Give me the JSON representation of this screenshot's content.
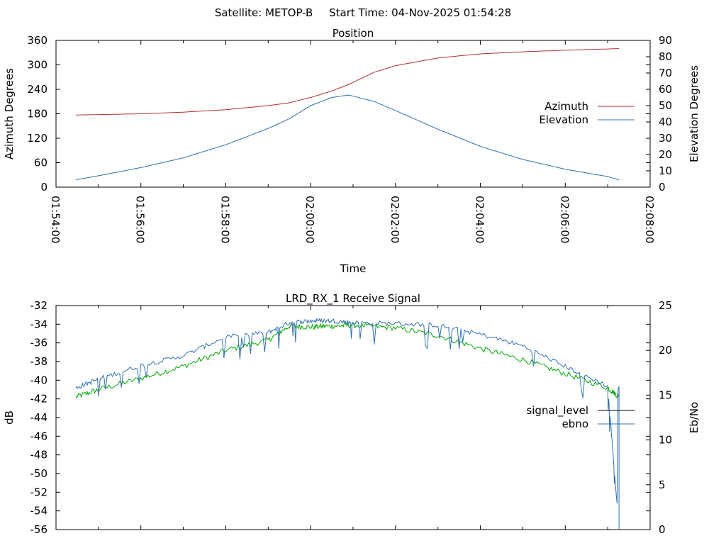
{
  "header": {
    "satellite_label": "Satellite: METOP-B",
    "start_time_label": "Start Time: 04-Nov-2025 01:54:28"
  },
  "colors": {
    "azimuth": "#b03030",
    "elevation": "#3070b0",
    "ebno_line": "#3070b0",
    "signal_line": "#00a800",
    "signal_legend_swatch": "#000000",
    "axis": "#000000"
  },
  "chart_data": [
    {
      "type": "line",
      "title": "Position",
      "xlabel": "Time",
      "ylabel": "Azimuth Degrees",
      "y2label": "Elevation Degrees",
      "xlim": [
        "01:54:00",
        "02:08:00"
      ],
      "ylim": [
        0,
        360
      ],
      "y2lim": [
        0,
        90
      ],
      "x_ticks": [
        "01:54:00",
        "01:56:00",
        "01:58:00",
        "02:00:00",
        "02:02:00",
        "02:04:00",
        "02:06:00",
        "02:08:00"
      ],
      "y_ticks": [
        "0",
        "60",
        "120",
        "180",
        "240",
        "300",
        "360"
      ],
      "y2_ticks": [
        "0",
        "10",
        "20",
        "30",
        "40",
        "50",
        "60",
        "70",
        "80",
        "90"
      ],
      "legend_position": "right-middle",
      "x": [
        "01:54:28",
        "01:55:00",
        "01:56:00",
        "01:57:00",
        "01:58:00",
        "01:59:00",
        "01:59:30",
        "02:00:00",
        "02:00:30",
        "02:00:54",
        "02:01:30",
        "02:02:00",
        "02:03:00",
        "02:04:00",
        "02:05:00",
        "02:06:00",
        "02:07:00",
        "02:07:16"
      ],
      "series": [
        {
          "name": "Azimuth",
          "axis": "left",
          "values": [
            177,
            178,
            180,
            184,
            190,
            200,
            207,
            220,
            236,
            252,
            282,
            298,
            317,
            327,
            332,
            336,
            339,
            340
          ]
        },
        {
          "name": "Elevation",
          "axis": "right",
          "values": [
            4.5,
            7,
            12,
            18,
            26,
            36,
            42,
            50,
            55,
            56.5,
            52.5,
            47,
            35.5,
            25,
            17,
            11,
            6.5,
            4.5
          ]
        }
      ]
    },
    {
      "type": "line",
      "title": "LRD_RX_1 Receive Signal",
      "ylabel": "dB",
      "y2label": "Eb/No",
      "xlim": [
        "01:54:00",
        "02:08:00"
      ],
      "ylim": [
        -56,
        -32
      ],
      "y2lim": [
        0,
        25
      ],
      "y_ticks": [
        "-56",
        "-54",
        "-52",
        "-50",
        "-48",
        "-46",
        "-44",
        "-42",
        "-40",
        "-38",
        "-36",
        "-34",
        "-32"
      ],
      "y2_ticks": [
        "0",
        "5",
        "10",
        "15",
        "20",
        "25"
      ],
      "legend_position": "right-middle",
      "legend": [
        "signal_level",
        "ebno"
      ],
      "x": [
        "01:54:28",
        "01:55:00",
        "01:56:00",
        "01:57:00",
        "01:58:00",
        "01:59:00",
        "01:59:30",
        "02:00:00",
        "02:00:30",
        "02:01:00",
        "02:02:00",
        "02:03:00",
        "02:04:00",
        "02:05:00",
        "02:06:00",
        "02:07:00",
        "02:07:16"
      ],
      "series": [
        {
          "name": "signal_level",
          "axis": "left",
          "values": [
            -41.8,
            -41.0,
            -39.8,
            -38.5,
            -36.8,
            -35.7,
            -34.2,
            -34.3,
            -34.2,
            -34.1,
            -34.4,
            -35.2,
            -36.6,
            -37.8,
            -39.3,
            -40.8,
            -41.8
          ]
        },
        {
          "name": "ebno",
          "axis": "right",
          "values": [
            15.8,
            16.8,
            18.3,
            19.4,
            21.5,
            22.0,
            23.1,
            23.3,
            23.3,
            23.1,
            23.0,
            22.8,
            21.8,
            20.5,
            18.2,
            16.0,
            0.0
          ]
        }
      ]
    }
  ]
}
